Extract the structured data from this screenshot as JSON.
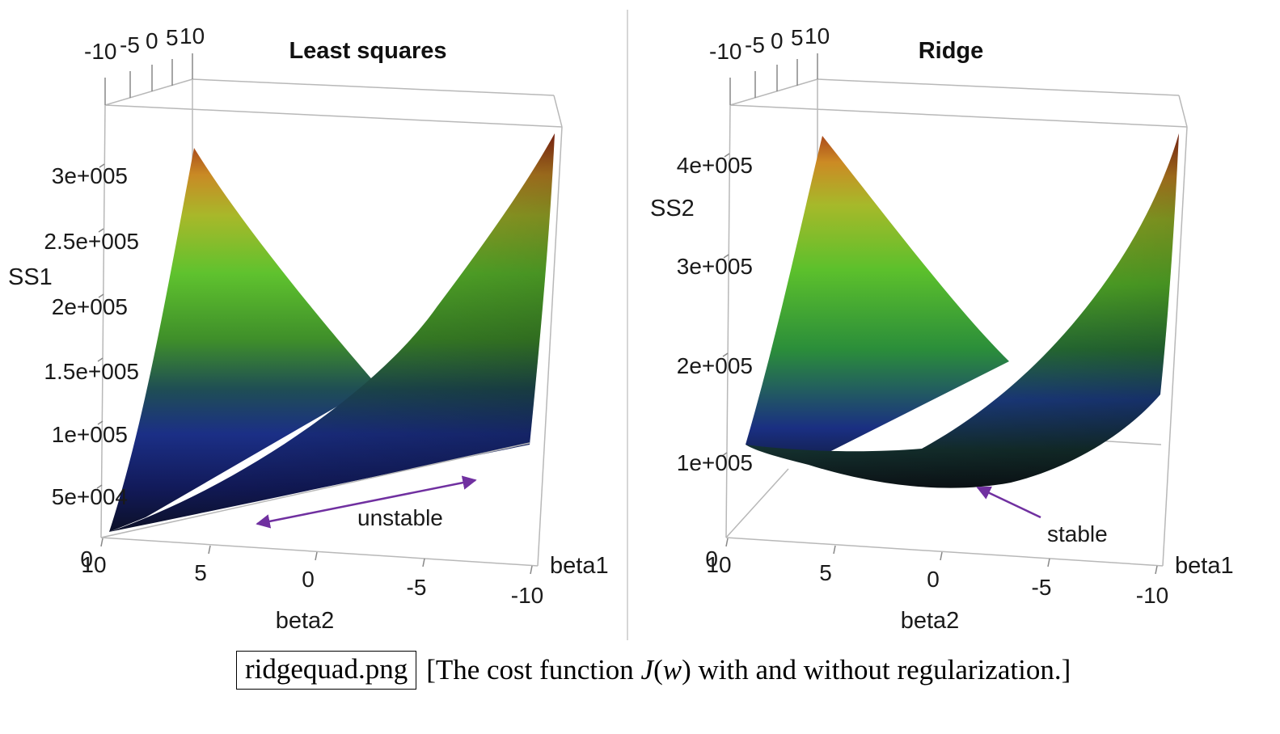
{
  "chart_data": [
    {
      "type": "surface",
      "title": "Least squares",
      "xlabel": "beta2",
      "ylabel": "beta1",
      "zlabel": "SS1",
      "x_ticks": [
        "10",
        "5",
        "0",
        "-5",
        "-10"
      ],
      "y_ticks": [
        "-10",
        "-5",
        "0",
        "5",
        "10"
      ],
      "z_ticks": [
        "0",
        "5e+004",
        "1e+005",
        "1.5e+005",
        "2e+005",
        "2.5e+005",
        "3e+005"
      ],
      "xlim": [
        -10,
        10
      ],
      "ylim": [
        -10,
        10
      ],
      "annotation": "unstable"
    },
    {
      "type": "surface",
      "title": "Ridge",
      "xlabel": "beta2",
      "ylabel": "beta1",
      "zlabel": "SS2",
      "x_ticks": [
        "10",
        "5",
        "0",
        "-5",
        "-10"
      ],
      "y_ticks": [
        "-10",
        "-5",
        "0",
        "5",
        "10"
      ],
      "z_ticks": [
        "0",
        "1e+005",
        "2e+005",
        "3e+005",
        "4e+005"
      ],
      "xlim": [
        -10,
        10
      ],
      "ylim": [
        -10,
        10
      ],
      "annotation": "stable"
    }
  ],
  "caption": {
    "filename": "ridgequad.png",
    "prefix": "[The cost function ",
    "func": "J",
    "open": "(",
    "arg": "w",
    "close": ")",
    "suffix": " with and without regularization.]"
  },
  "colors": {
    "arrow": "#7030a0",
    "axis": "#b0b0b0",
    "text": "#1a1a1a"
  }
}
